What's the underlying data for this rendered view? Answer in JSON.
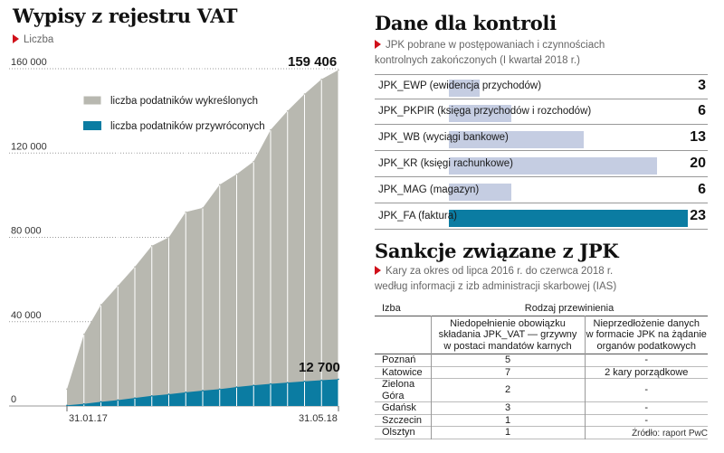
{
  "left": {
    "title": "Wypisy z rejestru VAT",
    "subtitle": "Liczba",
    "annotations": {
      "last_removed": "159 406",
      "last_restored": "12 700"
    }
  },
  "jpk": {
    "title": "Dane dla kontroli",
    "subtitle_line1": "JPK pobrane w postępowaniach i czynnościach",
    "subtitle_line2": "kontrolnych zakończonych (I kwartał 2018 r.)",
    "rows": [
      {
        "label": "JPK_EWP (ewidencja przychodów)",
        "value": "3"
      },
      {
        "label": "JPK_PKPIR (księga przychodów i rozchodów)",
        "value": "6"
      },
      {
        "label": "JPK_WB (wyciągi bankowe)",
        "value": "13"
      },
      {
        "label": "JPK_KR (księgi rachunkowe)",
        "value": "20"
      },
      {
        "label": "JPK_MAG (magazyn)",
        "value": "6"
      },
      {
        "label": "JPK_FA (faktura)",
        "value": "23"
      }
    ]
  },
  "sank": {
    "title": "Sankcje związane z JPK",
    "subtitle_line1": "Kary za okres od lipca 2016 r. do czerwca 2018 r.",
    "subtitle_line2": "według informacji z izb administracji skarbowej (IAS)",
    "head_izba": "Izba",
    "head_group": "Rodzaj przewinienia",
    "col1_l1": "Niedopełnienie obowiązku",
    "col1_l2": "składania JPK_VAT — grzywny",
    "col1_l3": "w postaci mandatów karnych",
    "col2_l1": "Nieprzedłożenie danych",
    "col2_l2": "w formacie JPK na żądanie",
    "col2_l3": "organów podatkowych",
    "rows": [
      {
        "izba": "Poznań",
        "c1": "5",
        "c2": "-"
      },
      {
        "izba": "Katowice",
        "c1": "7",
        "c2": "2 kary porządkowe"
      },
      {
        "izba": "Zielona Góra",
        "c1": "2",
        "c2": "-"
      },
      {
        "izba": "Gdańsk",
        "c1": "3",
        "c2": "-"
      },
      {
        "izba": "Szczecin",
        "c1": "1",
        "c2": "-"
      },
      {
        "izba": "Olsztyn",
        "c1": "1",
        "c2": "-"
      }
    ]
  },
  "source": "Źródło: raport PwC",
  "colors": {
    "removed": "#b8b8b0",
    "restored": "#0b7ca2",
    "jpk_bar": "#c5cde2",
    "accent": "#d0101a"
  },
  "chart_data": [
    {
      "type": "area",
      "x": [
        "31.01.17",
        "28.02.17",
        "31.03.17",
        "30.04.17",
        "31.05.17",
        "30.06.17",
        "31.07.17",
        "31.08.17",
        "30.09.17",
        "31.10.17",
        "30.11.17",
        "31.12.17",
        "31.01.18",
        "28.02.18",
        "31.03.18",
        "30.04.18",
        "31.05.18"
      ],
      "x_tick_labels": [
        "31.01.17",
        "31.05.18"
      ],
      "y_ticks": [
        "0",
        "40 000",
        "80 000",
        "120 000",
        "160 000"
      ],
      "ylim": [
        0,
        160000
      ],
      "series": [
        {
          "name": "liczba podatników wykreślonych",
          "values": [
            8000,
            34000,
            48000,
            57000,
            66000,
            76000,
            80000,
            92000,
            94000,
            105000,
            110000,
            116000,
            131000,
            140000,
            148000,
            155000,
            159406
          ]
        },
        {
          "name": "liczba podatników przywróconych",
          "values": [
            300,
            1000,
            2000,
            2800,
            3800,
            4800,
            5600,
            6500,
            7300,
            8000,
            9000,
            9800,
            10500,
            11100,
            11700,
            12200,
            12700
          ]
        }
      ],
      "title": "Wypisy z rejestru VAT",
      "legend": "top-left"
    },
    {
      "type": "bar",
      "orientation": "horizontal",
      "categories": [
        "JPK_EWP (ewidencja przychodów)",
        "JPK_PKPIR (księga przychodów i rozchodów)",
        "JPK_WB (wyciągi bankowe)",
        "JPK_KR (księgi rachunkowe)",
        "JPK_MAG (magazyn)",
        "JPK_FA (faktura)"
      ],
      "values": [
        3,
        6,
        13,
        20,
        6,
        23
      ],
      "title": "Dane dla kontroli"
    }
  ]
}
